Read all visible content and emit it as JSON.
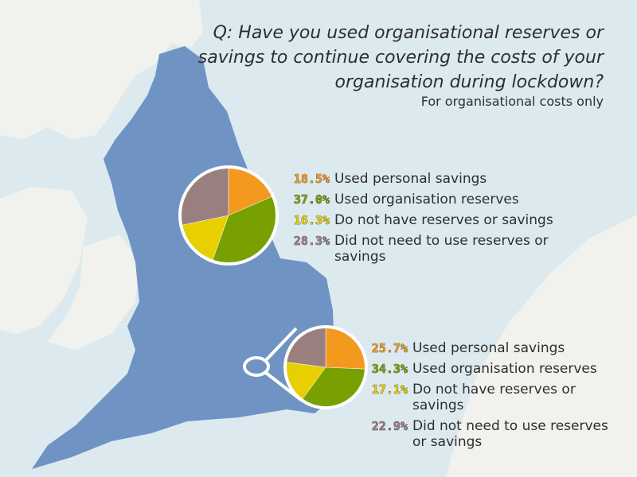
{
  "title": "Q: Have you used organisational reserves or savings to continue covering the costs of your organisation during lockdown?",
  "subtitle": "For organisational costs only",
  "colors": {
    "sea": "#dceaf0",
    "land_other": "#f1f2ee",
    "land_focus": "#6f93c3",
    "used_personal_savings": "#f39a1e",
    "used_organisation_reserves": "#77a000",
    "no_reserves": "#e8cf00",
    "did_not_need": "#9a7f7f"
  },
  "chart_data": [
    {
      "type": "pie",
      "categories": [
        "Used personal savings",
        "Used organisation reserves",
        "Do not have reserves or savings",
        "Did not need to use reserves or savings"
      ],
      "labels": [
        "18.5%",
        "37.0%",
        "16.3%",
        "28.3%"
      ],
      "values": [
        18.5,
        37.0,
        16.3,
        28.3
      ]
    },
    {
      "type": "pie",
      "categories": [
        "Used personal savings",
        "Used organisation reserves",
        "Do not have reserves or savings",
        "Did not need to use reserves or savings"
      ],
      "labels": [
        "25.7%",
        "34.3%",
        "17.1%",
        "22.9%"
      ],
      "values": [
        25.7,
        34.3,
        17.1,
        22.9
      ]
    }
  ]
}
